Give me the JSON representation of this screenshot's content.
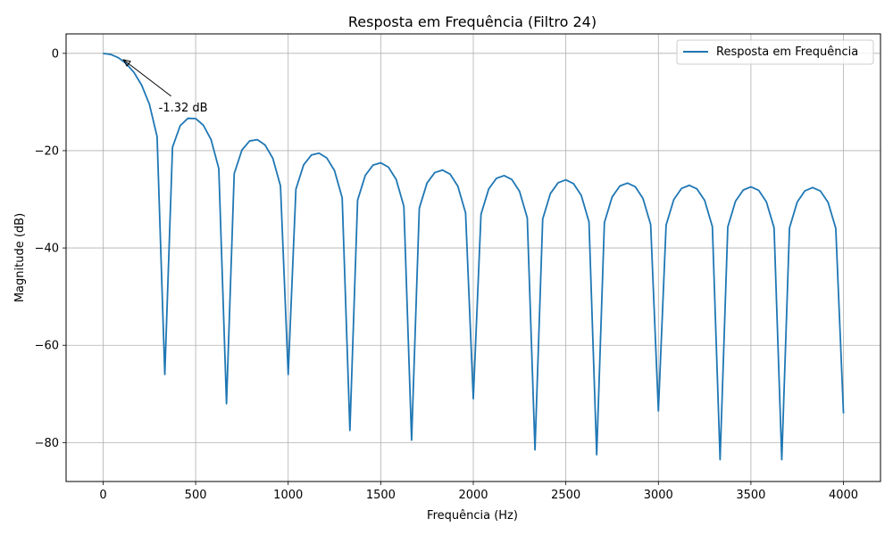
{
  "chart_data": {
    "type": "line",
    "title": "Resposta em Frequência (Filtro 24)",
    "xlabel": "Frequência (Hz)",
    "ylabel": "Magnitude (dB)",
    "xlim": [
      -200,
      4200
    ],
    "ylim": [
      -88,
      4
    ],
    "xticks": [
      0,
      500,
      1000,
      1500,
      2000,
      2500,
      3000,
      3500,
      4000
    ],
    "xtick_labels": [
      "0",
      "500",
      "1000",
      "1500",
      "2000",
      "2500",
      "3000",
      "3500",
      "4000"
    ],
    "yticks": [
      0,
      -20,
      -40,
      -60,
      -80
    ],
    "ytick_labels": [
      "0",
      "−20",
      "−40",
      "−60",
      "−80"
    ],
    "grid": true,
    "legend_position": "top-right",
    "series": [
      {
        "name": "Resposta em Frequência",
        "color": "#1f77b4",
        "model": "moving-average",
        "taps": 24,
        "sample_rate_hz": 8000,
        "x_range": [
          0,
          4000
        ],
        "null_depths_db": [
          -66,
          -72,
          -66,
          -77.5,
          -79.5,
          -71,
          -81.5,
          -82.5,
          -73.5,
          -83.5,
          -83.5,
          -74
        ]
      }
    ],
    "annotations": [
      {
        "text": "-1.32 dB",
        "point": [
          110,
          -1.32
        ],
        "text_anchor_point": [
          300,
          -11
        ]
      }
    ]
  }
}
